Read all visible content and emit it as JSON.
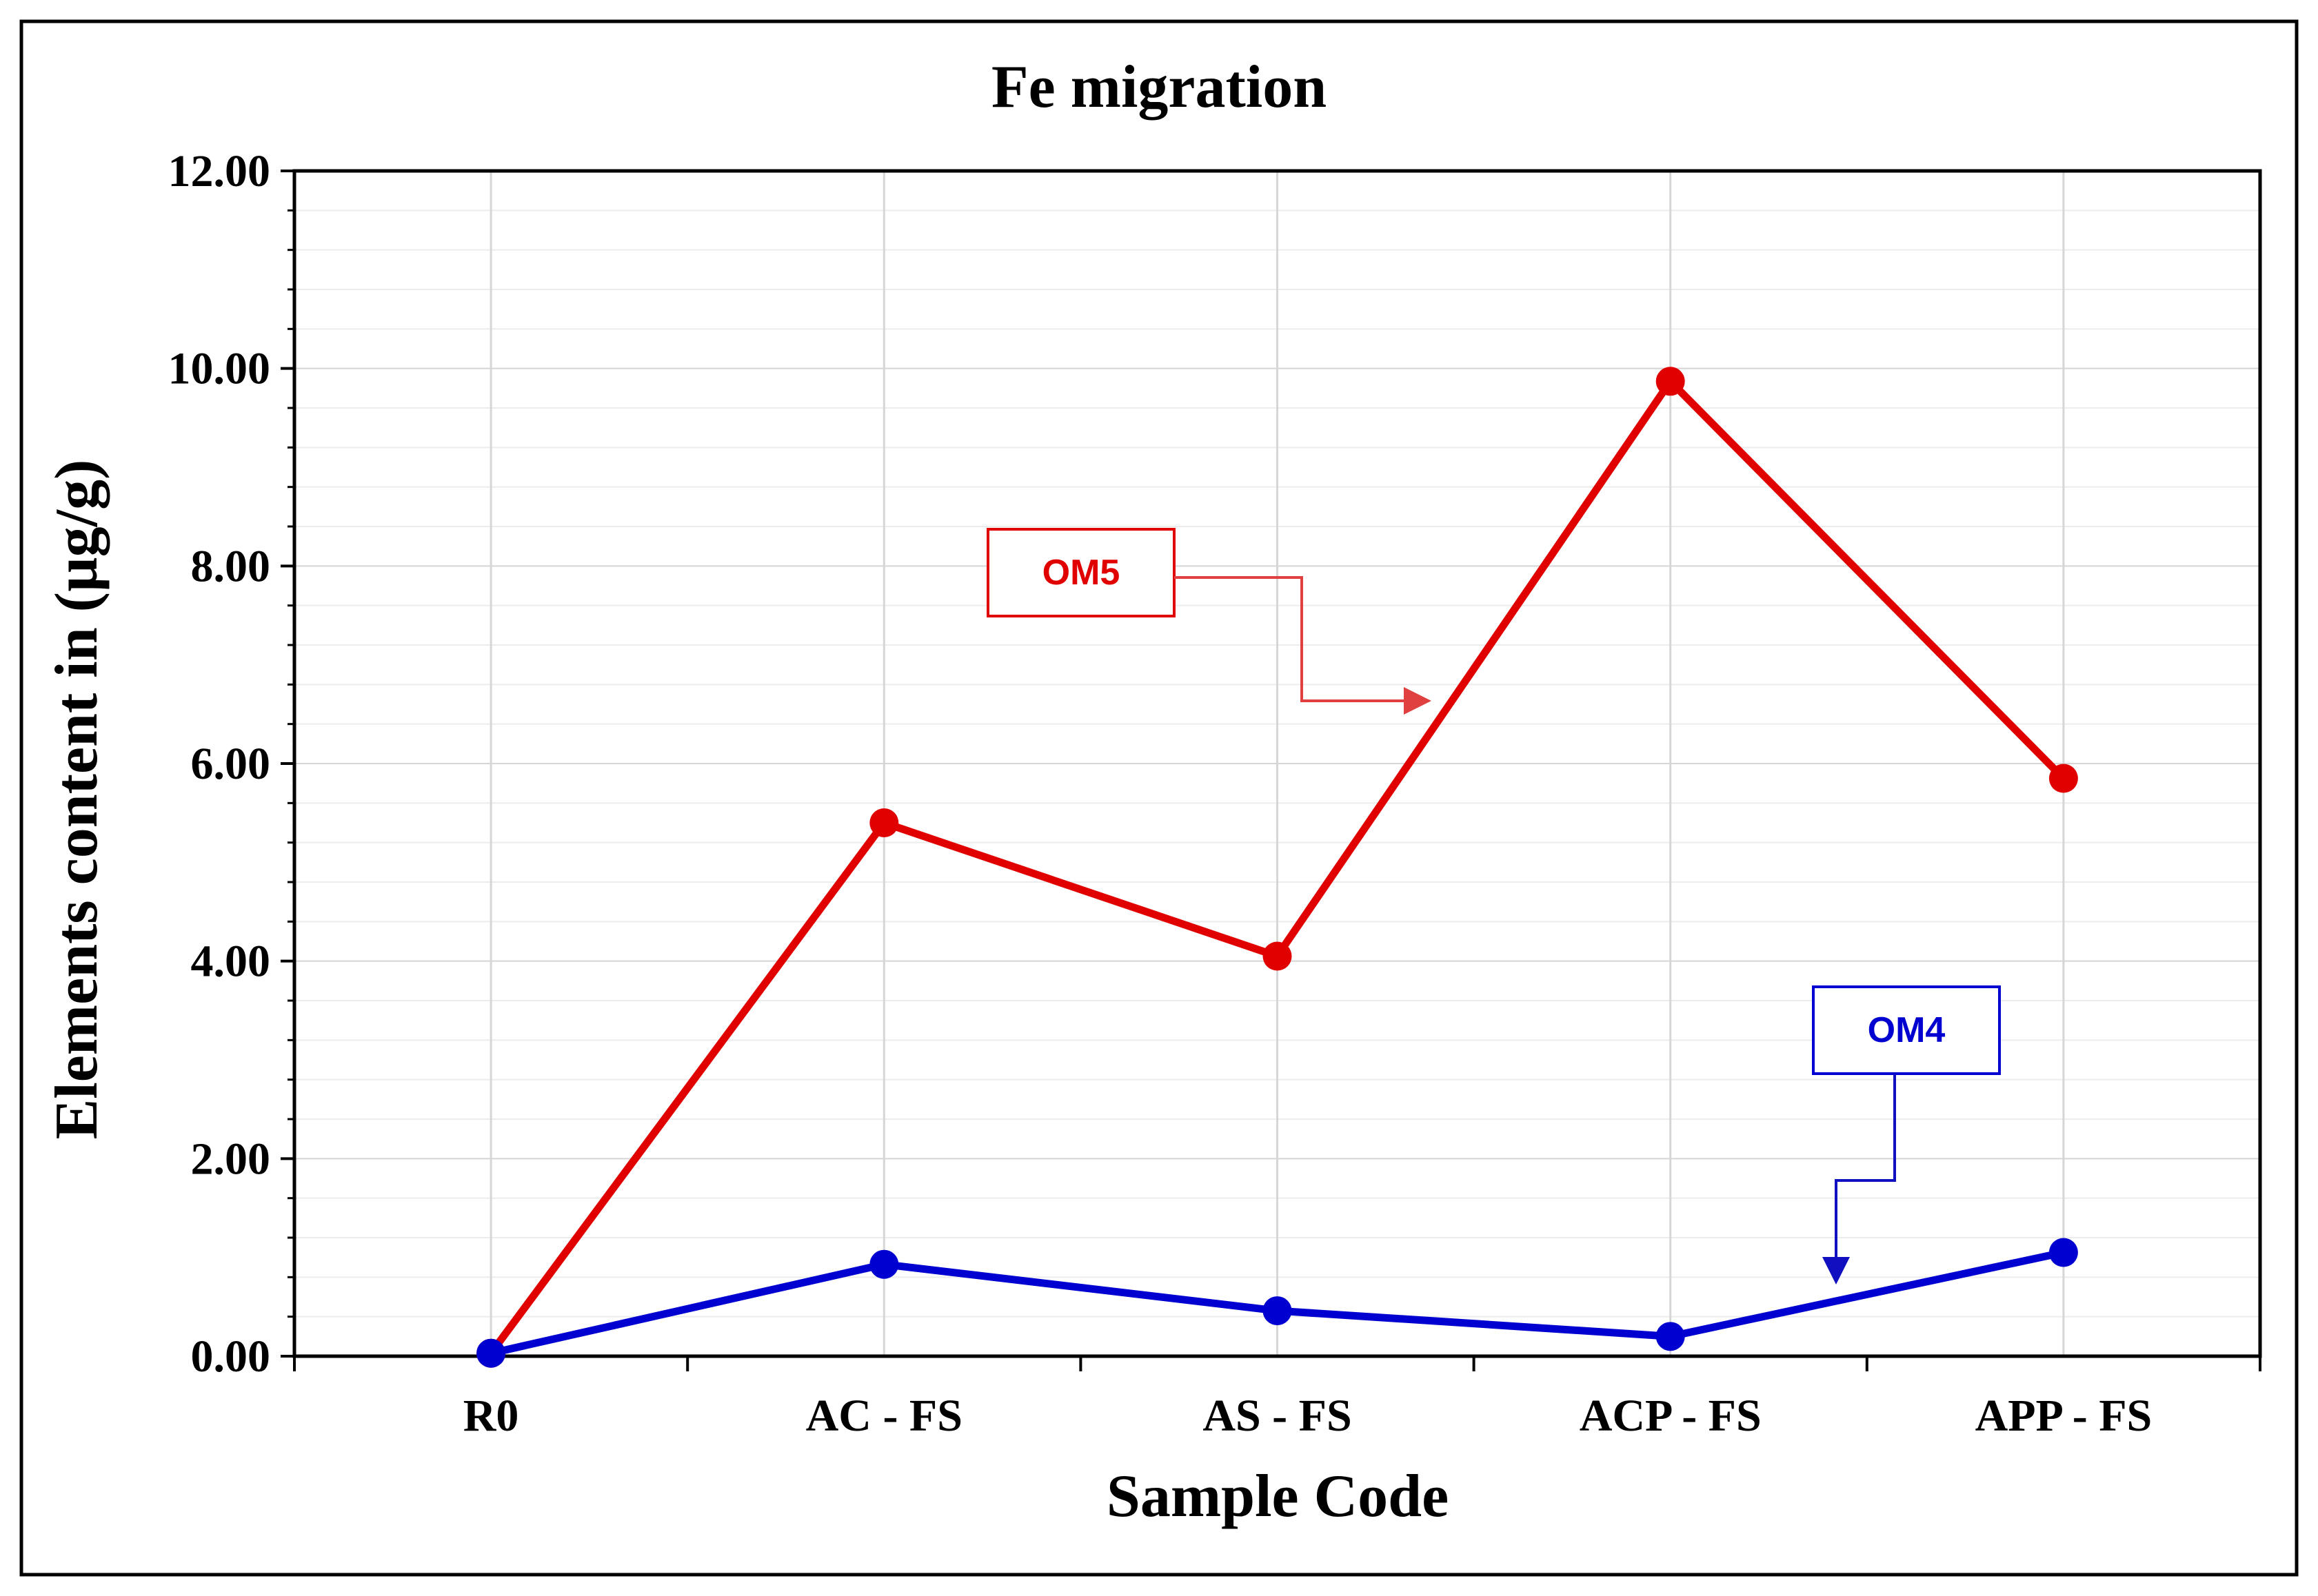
{
  "chart_data": {
    "type": "line",
    "title": "Fe migration",
    "xlabel": "Sample Code",
    "ylabel": "Elements content in (µg/g)",
    "categories": [
      "R0",
      "AC - FS",
      "AS - FS",
      "ACP - FS",
      "APP - FS"
    ],
    "ylim": [
      0,
      12
    ],
    "yticks": [
      0,
      2,
      4,
      6,
      8,
      10,
      12
    ],
    "ytick_labels": [
      "0.00",
      "2.00",
      "4.00",
      "6.00",
      "8.00",
      "10.00",
      "12.00"
    ],
    "grid": true,
    "series": [
      {
        "name": "OM5",
        "color": "#e00000",
        "values": [
          0.03,
          5.4,
          4.05,
          9.87,
          5.85
        ]
      },
      {
        "name": "OM4",
        "color": "#0000d0",
        "values": [
          0.03,
          0.93,
          0.46,
          0.2,
          1.05
        ]
      }
    ],
    "annotations": [
      {
        "text": "OM5",
        "color": "#e00000"
      },
      {
        "text": "OM4",
        "color": "#0000d0"
      }
    ]
  }
}
